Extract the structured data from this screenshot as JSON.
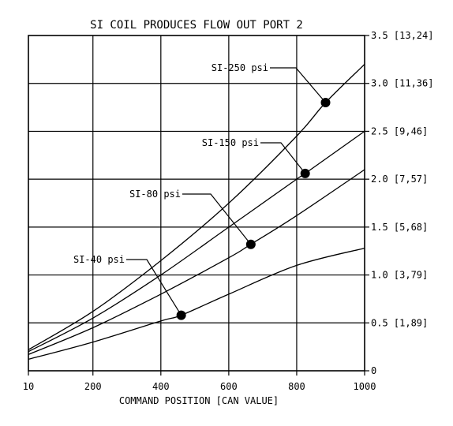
{
  "chart_data": {
    "type": "line",
    "title": "SI COIL PRODUCES FLOW OUT PORT 2",
    "xlabel": "COMMAND POSITION [CAN VALUE]",
    "ylabel": "",
    "xlim": [
      10,
      1000
    ],
    "ylim": [
      0,
      3.5
    ],
    "grid": true,
    "x_ticks": [
      {
        "value": 10,
        "label": "10"
      },
      {
        "value": 200,
        "label": "200"
      },
      {
        "value": 400,
        "label": "400"
      },
      {
        "value": 600,
        "label": "600"
      },
      {
        "value": 800,
        "label": "800"
      },
      {
        "value": 1000,
        "label": "1000"
      }
    ],
    "y_ticks": [
      {
        "value": 0,
        "label": "0"
      },
      {
        "value": 0.5,
        "label": "0.5 [1,89]"
      },
      {
        "value": 1.0,
        "label": "1.0 [3,79]"
      },
      {
        "value": 1.5,
        "label": "1.5 [5,68]"
      },
      {
        "value": 2.0,
        "label": "2.0 [7,57]"
      },
      {
        "value": 2.5,
        "label": "2.5 [9,46]"
      },
      {
        "value": 3.0,
        "label": "3.0 [11,36]"
      },
      {
        "value": 3.5,
        "label": "3.5 [13,24]"
      }
    ],
    "series": [
      {
        "name": "SI-40 psi",
        "x": [
          10,
          200,
          400,
          460,
          600,
          800,
          1000
        ],
        "y": [
          0.12,
          0.3,
          0.52,
          0.58,
          0.8,
          1.1,
          1.28
        ],
        "marker": {
          "x": 460,
          "y": 0.58
        }
      },
      {
        "name": "SI-80 psi",
        "x": [
          10,
          200,
          400,
          600,
          665,
          800,
          1000
        ],
        "y": [
          0.17,
          0.45,
          0.8,
          1.18,
          1.32,
          1.62,
          2.1
        ],
        "marker": {
          "x": 665,
          "y": 1.32
        }
      },
      {
        "name": "SI-150 psi",
        "x": [
          10,
          200,
          400,
          600,
          800,
          825,
          1000
        ],
        "y": [
          0.2,
          0.55,
          1.0,
          1.5,
          2.0,
          2.06,
          2.5
        ],
        "marker": {
          "x": 825,
          "y": 2.06
        }
      },
      {
        "name": "SI-250 psi",
        "x": [
          10,
          200,
          400,
          600,
          800,
          885,
          1000
        ],
        "y": [
          0.22,
          0.62,
          1.15,
          1.75,
          2.45,
          2.8,
          3.2
        ],
        "marker": {
          "x": 885,
          "y": 2.8
        }
      }
    ]
  }
}
